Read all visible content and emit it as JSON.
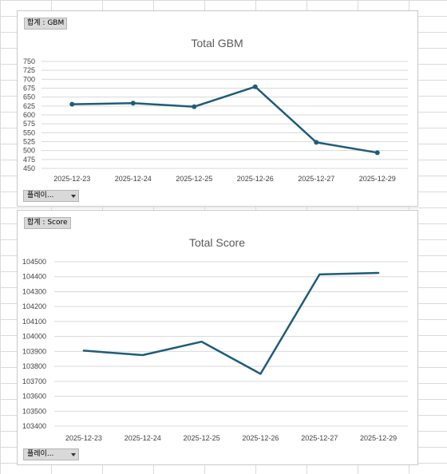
{
  "charts": [
    {
      "field_button": "합계 : GBM",
      "filter_button": "플레이...",
      "accent": "#1F5C7A"
    },
    {
      "field_button": "합계 : Score",
      "filter_button": "플레이...",
      "accent": "#1F5C7A"
    }
  ],
  "chart_data": [
    {
      "type": "line",
      "title": "Total GBM",
      "categories": [
        "2025-12-23",
        "2025-12-24",
        "2025-12-25",
        "2025-12-26",
        "2025-12-27",
        "2025-12-29"
      ],
      "series": [
        {
          "values": [
            630,
            633,
            623,
            679,
            523,
            494
          ],
          "markers": true
        }
      ],
      "yticks": [
        450,
        475,
        500,
        525,
        550,
        575,
        600,
        625,
        650,
        675,
        700,
        725,
        750
      ],
      "ylim": [
        450,
        750
      ],
      "grid": true,
      "xlabel": "",
      "ylabel": ""
    },
    {
      "type": "line",
      "title": "Total Score",
      "categories": [
        "2025-12-23",
        "2025-12-24",
        "2025-12-25",
        "2025-12-26",
        "2025-12-27",
        "2025-12-29"
      ],
      "series": [
        {
          "values": [
            103905,
            103875,
            103965,
            103750,
            104415,
            104425
          ],
          "markers": false
        }
      ],
      "yticks": [
        103400,
        103500,
        103600,
        103700,
        103800,
        103900,
        104000,
        104100,
        104200,
        104300,
        104400,
        104500
      ],
      "ylim": [
        103400,
        104500
      ],
      "grid": true,
      "xlabel": "",
      "ylabel": ""
    }
  ]
}
